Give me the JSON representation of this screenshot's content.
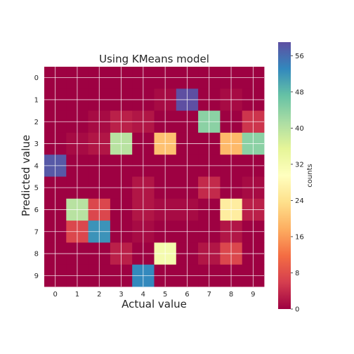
{
  "chart_data": {
    "type": "heatmap",
    "title": "Using KMeans model",
    "xlabel": "Actual value",
    "ylabel": "Predicted value",
    "x_categories": [
      "0",
      "1",
      "2",
      "3",
      "4",
      "5",
      "6",
      "7",
      "8",
      "9"
    ],
    "y_categories": [
      "0",
      "1",
      "2",
      "3",
      "4",
      "5",
      "6",
      "7",
      "8",
      "9"
    ],
    "values": [
      [
        0,
        0,
        0,
        0,
        0,
        0,
        0,
        0,
        0,
        0
      ],
      [
        0,
        0,
        0,
        0,
        0,
        1,
        59,
        0,
        1,
        0
      ],
      [
        0,
        0,
        1,
        3,
        2,
        0,
        0,
        44,
        0,
        5
      ],
      [
        0,
        1,
        2,
        40,
        0,
        20,
        0,
        0,
        19,
        44
      ],
      [
        58,
        0,
        0,
        0,
        0,
        0,
        0,
        0,
        0,
        0
      ],
      [
        0,
        0,
        0,
        0,
        2,
        0,
        0,
        4,
        0,
        1
      ],
      [
        0,
        40,
        7,
        0,
        2,
        1,
        1,
        0,
        26,
        3
      ],
      [
        0,
        7,
        52,
        0,
        1,
        0,
        0,
        0,
        2,
        0
      ],
      [
        0,
        0,
        0,
        3,
        0,
        32,
        0,
        2,
        7,
        0
      ],
      [
        0,
        0,
        0,
        0,
        53,
        0,
        0,
        0,
        0,
        0
      ]
    ],
    "colormap": "Spectral",
    "colorbar": {
      "label": "counts",
      "range": [
        0,
        59
      ],
      "ticks": [
        0,
        8,
        16,
        24,
        32,
        40,
        48,
        56
      ]
    },
    "grid": true,
    "grid_color": "#ffffff"
  }
}
